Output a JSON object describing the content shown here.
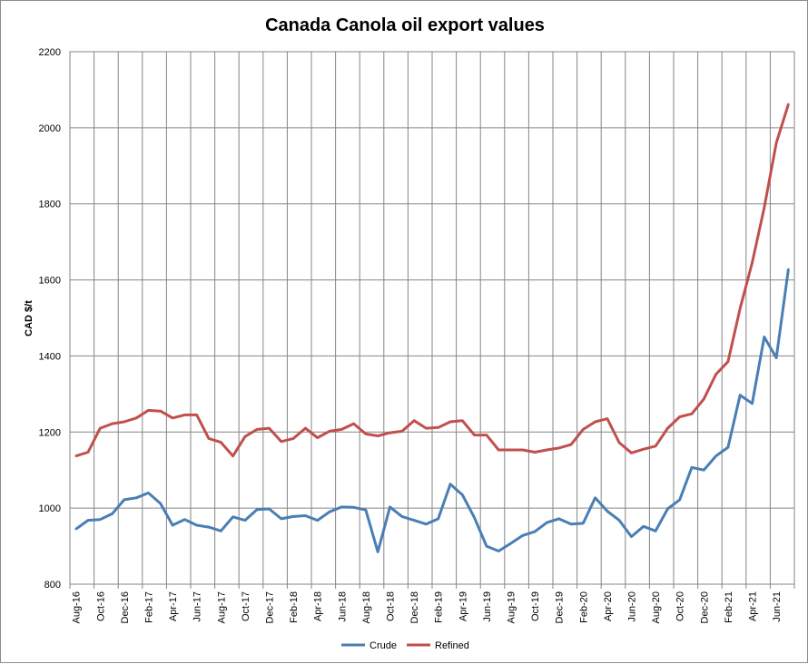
{
  "chart_data": {
    "type": "line",
    "title": "Canada Canola oil export values",
    "xlabel": "",
    "ylabel": "CAD $/t",
    "ylim": [
      800,
      2200
    ],
    "yticks": [
      800,
      1000,
      1200,
      1400,
      1600,
      1800,
      2000,
      2200
    ],
    "grid": true,
    "legend": "bottom",
    "x": [
      "Aug-16",
      "Sep-16",
      "Oct-16",
      "Nov-16",
      "Dec-16",
      "Jan-17",
      "Feb-17",
      "Mar-17",
      "Apr-17",
      "May-17",
      "Jun-17",
      "Jul-17",
      "Aug-17",
      "Sep-17",
      "Oct-17",
      "Nov-17",
      "Dec-17",
      "Jan-18",
      "Feb-18",
      "Mar-18",
      "Apr-18",
      "May-18",
      "Jun-18",
      "Jul-18",
      "Aug-18",
      "Sep-18",
      "Oct-18",
      "Nov-18",
      "Dec-18",
      "Jan-19",
      "Feb-19",
      "Mar-19",
      "Apr-19",
      "May-19",
      "Jun-19",
      "Jul-19",
      "Aug-19",
      "Sep-19",
      "Oct-19",
      "Nov-19",
      "Dec-19",
      "Jan-20",
      "Feb-20",
      "Mar-20",
      "Apr-20",
      "May-20",
      "Jun-20",
      "Jul-20",
      "Aug-20",
      "Sep-20",
      "Oct-20",
      "Nov-20",
      "Dec-20",
      "Jan-21",
      "Feb-21",
      "Mar-21",
      "Apr-21",
      "May-21",
      "Jun-21",
      "Jul-21"
    ],
    "tick_interval": 2,
    "series": [
      {
        "name": "Crude",
        "color": "#4a7eb4",
        "values": [
          945,
          968,
          970,
          985,
          1022,
          1027,
          1040,
          1012,
          955,
          970,
          955,
          950,
          940,
          977,
          968,
          996,
          998,
          972,
          978,
          980,
          968,
          990,
          1003,
          1002,
          995,
          885,
          1003,
          978,
          968,
          958,
          972,
          1063,
          1035,
          975,
          900,
          887,
          907,
          928,
          938,
          962,
          972,
          958,
          960,
          1027,
          992,
          968,
          925,
          952,
          940,
          998,
          1022,
          1107,
          1100,
          1137,
          1160,
          1297,
          1275,
          1450,
          1395,
          1628
        ]
      },
      {
        "name": "Refined",
        "color": "#c0504d",
        "values": [
          1137,
          1147,
          1210,
          1222,
          1227,
          1237,
          1257,
          1255,
          1237,
          1245,
          1245,
          1183,
          1173,
          1137,
          1188,
          1207,
          1210,
          1175,
          1183,
          1210,
          1185,
          1202,
          1207,
          1222,
          1195,
          1190,
          1198,
          1202,
          1230,
          1210,
          1212,
          1227,
          1230,
          1192,
          1192,
          1153,
          1153,
          1153,
          1147,
          1153,
          1158,
          1167,
          1207,
          1227,
          1235,
          1172,
          1145,
          1155,
          1163,
          1210,
          1240,
          1248,
          1287,
          1352,
          1385,
          1525,
          1645,
          1790,
          1960,
          2062
        ]
      }
    ]
  }
}
